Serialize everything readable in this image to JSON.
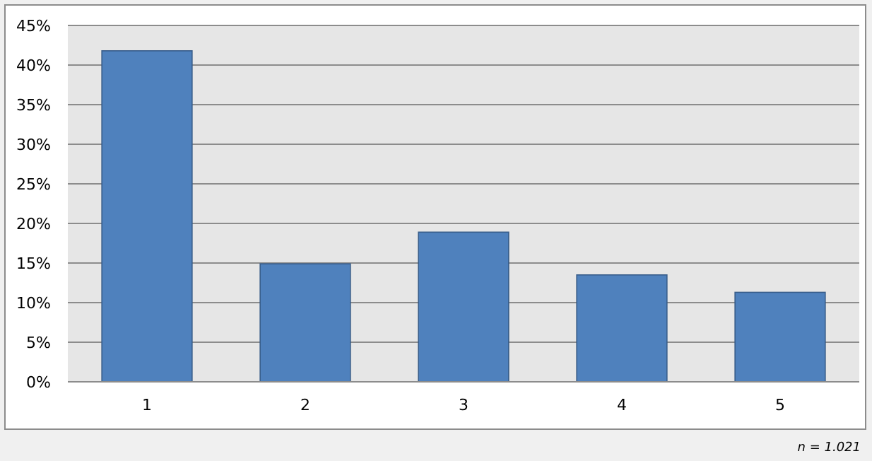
{
  "chart_data": {
    "type": "bar",
    "categories": [
      "1",
      "2",
      "3",
      "4",
      "5"
    ],
    "values": [
      41.8,
      14.9,
      18.9,
      13.5,
      11.3
    ],
    "color": "#4f81bd",
    "ylim": [
      0,
      45
    ],
    "yticks": [
      {
        "value": 0,
        "label": "0%"
      },
      {
        "value": 5,
        "label": "5%"
      },
      {
        "value": 10,
        "label": "10%"
      },
      {
        "value": 15,
        "label": "15%"
      },
      {
        "value": 20,
        "label": "20%"
      },
      {
        "value": 25,
        "label": "25%"
      },
      {
        "value": 30,
        "label": "30%"
      },
      {
        "value": 35,
        "label": "35%"
      },
      {
        "value": 40,
        "label": "40%"
      },
      {
        "value": 45,
        "label": "45%"
      }
    ],
    "grid": "y",
    "annotations": [
      "n = 1.021"
    ]
  }
}
